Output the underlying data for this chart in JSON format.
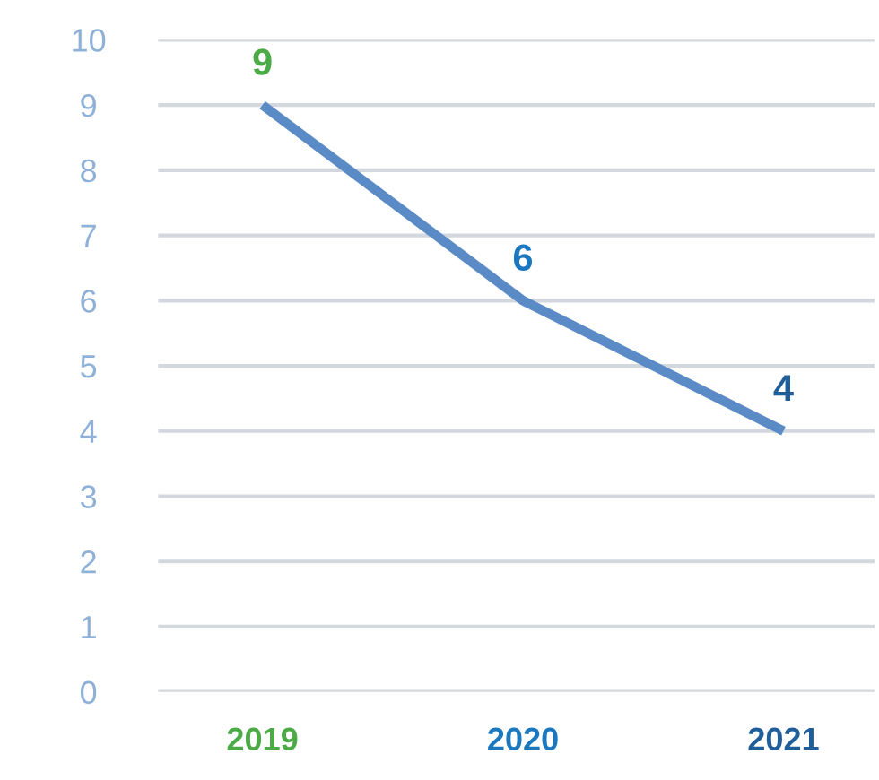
{
  "chart_data": {
    "type": "line",
    "categories": [
      "2019",
      "2020",
      "2021"
    ],
    "series": [
      {
        "color": "#5b8bc7",
        "values": [
          9,
          6,
          4
        ],
        "colors": [
          "#4cab47",
          "#1b78bf",
          "#1f5e98"
        ]
      }
    ],
    "ylim": [
      0,
      10
    ],
    "yticks": [
      0,
      1,
      2,
      3,
      4,
      5,
      6,
      7,
      8,
      9,
      10
    ],
    "grid": "y",
    "data_labels": true,
    "marker": "none",
    "line_style": "solid",
    "legend": false
  }
}
